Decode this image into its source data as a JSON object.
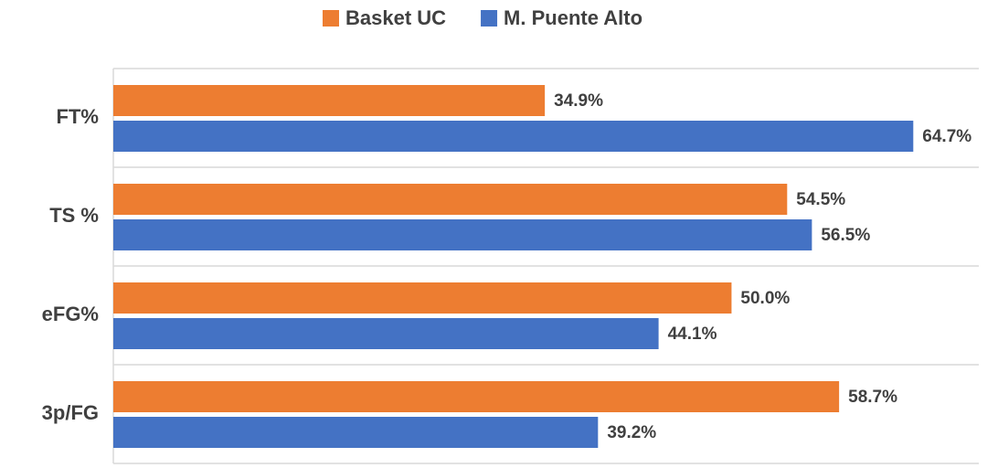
{
  "chart_data": {
    "type": "bar",
    "orientation": "horizontal",
    "categories": [
      "FT%",
      "TS %",
      "eFG%",
      "3p/FG"
    ],
    "series": [
      {
        "name": "Basket UC",
        "color": "#ed7d31",
        "values": [
          34.9,
          54.5,
          50.0,
          58.7
        ],
        "value_labels": [
          "34.9%",
          "54.5%",
          "50.0%",
          "58.7%"
        ]
      },
      {
        "name": "M. Puente Alto",
        "color": "#4472c4",
        "values": [
          64.7,
          56.5,
          44.1,
          39.2
        ],
        "value_labels": [
          "64.7%",
          "56.5%",
          "44.1%",
          "39.2%"
        ]
      }
    ],
    "xlim": [
      0,
      70
    ],
    "legend": "top"
  }
}
